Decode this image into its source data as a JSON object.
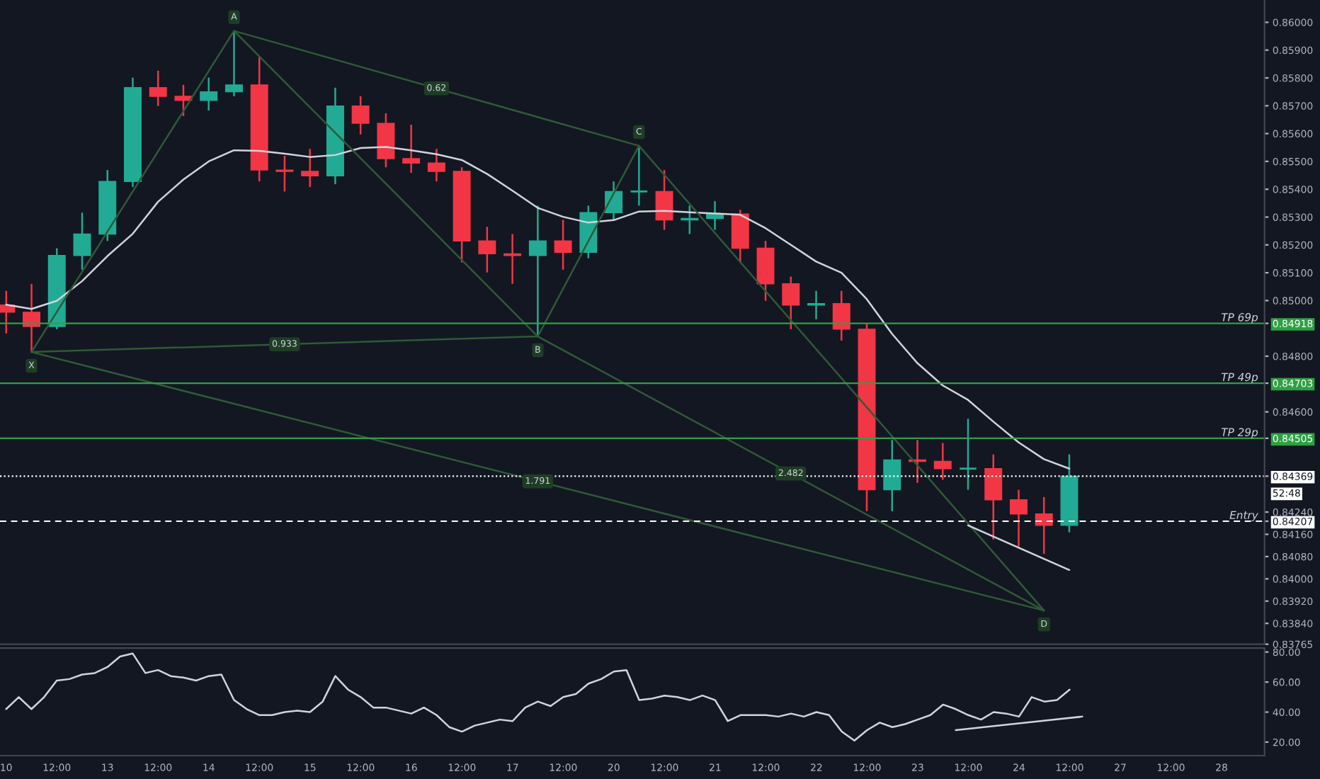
{
  "chart_data": [
    {
      "type": "candlestick",
      "ylim": [
        0.83765,
        0.8608
      ],
      "tick_labels": "y",
      "grid": false,
      "legend": false,
      "yticks": [
        {
          "value": 0.86,
          "label": "0.86000"
        },
        {
          "value": 0.859,
          "label": "0.85900"
        },
        {
          "value": 0.858,
          "label": "0.85800"
        },
        {
          "value": 0.857,
          "label": "0.85700"
        },
        {
          "value": 0.856,
          "label": "0.85600"
        },
        {
          "value": 0.855,
          "label": "0.85500"
        },
        {
          "value": 0.854,
          "label": "0.85400"
        },
        {
          "value": 0.853,
          "label": "0.85300"
        },
        {
          "value": 0.852,
          "label": "0.85200"
        },
        {
          "value": 0.851,
          "label": "0.85100"
        },
        {
          "value": 0.85,
          "label": "0.85000"
        },
        {
          "value": 0.84918,
          "label": "0.84918"
        },
        {
          "value": 0.848,
          "label": "0.84800"
        },
        {
          "value": 0.84703,
          "label": "0.84703"
        },
        {
          "value": 0.846,
          "label": "0.84600"
        },
        {
          "value": 0.84505,
          "label": "0.84505"
        },
        {
          "value": 0.84369,
          "label": "0.84369"
        },
        {
          "value": 0.8424,
          "label": "0.84240"
        },
        {
          "value": 0.84207,
          "label": "0.84207"
        },
        {
          "value": 0.8416,
          "label": "0.84160"
        },
        {
          "value": 0.8408,
          "label": "0.84080"
        },
        {
          "value": 0.84,
          "label": "0.84000"
        },
        {
          "value": 0.8392,
          "label": "0.83920"
        },
        {
          "value": 0.8384,
          "label": "0.83840"
        },
        {
          "value": 0.83765,
          "label": "0.83765"
        }
      ],
      "categories": [
        null,
        null,
        null,
        null,
        null,
        null,
        null,
        null,
        null,
        null,
        null,
        null,
        null,
        null,
        null,
        null,
        null,
        null,
        null,
        null,
        null,
        null,
        null,
        null,
        null,
        null,
        null,
        null,
        null,
        null,
        null,
        null,
        null,
        null,
        null,
        null,
        null,
        null,
        null,
        null,
        null,
        null,
        null,
        null,
        null,
        null,
        null,
        null,
        null
      ],
      "ohlc": [
        [
          0.84984,
          0.85035,
          0.84882,
          0.84958
        ],
        [
          0.84958,
          0.8506,
          0.84815,
          0.84907
        ],
        [
          0.84907,
          0.85188,
          0.84897,
          0.85162
        ],
        [
          0.85162,
          0.85316,
          0.85111,
          0.85239
        ],
        [
          0.85239,
          0.85469,
          0.85214,
          0.85428
        ],
        [
          0.85428,
          0.85801,
          0.85408,
          0.85765
        ],
        [
          0.85765,
          0.85826,
          0.85699,
          0.85734
        ],
        [
          0.85734,
          0.85775,
          0.85663,
          0.85719
        ],
        [
          0.85719,
          0.85801,
          0.85683,
          0.8575
        ],
        [
          0.8575,
          0.85969,
          0.85734,
          0.85775
        ],
        [
          0.85775,
          0.85877,
          0.85428,
          0.85469
        ],
        [
          0.85469,
          0.8552,
          0.85392,
          0.85464
        ],
        [
          0.85464,
          0.85545,
          0.85408,
          0.85448
        ],
        [
          0.85448,
          0.85765,
          0.85418,
          0.85699
        ],
        [
          0.85699,
          0.85734,
          0.85597,
          0.85637
        ],
        [
          0.85637,
          0.85673,
          0.85479,
          0.8551
        ],
        [
          0.8551,
          0.85632,
          0.85459,
          0.85494
        ],
        [
          0.85494,
          0.85545,
          0.85428,
          0.85464
        ],
        [
          0.85464,
          0.85479,
          0.85137,
          0.85214
        ],
        [
          0.85214,
          0.85265,
          0.85101,
          0.85168
        ],
        [
          0.85168,
          0.85239,
          0.8506,
          0.85162
        ],
        [
          0.85162,
          0.85341,
          0.84871,
          0.85214
        ],
        [
          0.85214,
          0.8529,
          0.85111,
          0.85173
        ],
        [
          0.85173,
          0.85341,
          0.85152,
          0.85316
        ],
        [
          0.85316,
          0.85428,
          0.8529,
          0.85392
        ],
        [
          0.85392,
          0.85556,
          0.85341,
          0.85392
        ],
        [
          0.85392,
          0.85469,
          0.85254,
          0.8529
        ],
        [
          0.8529,
          0.85341,
          0.85239,
          0.85295
        ],
        [
          0.85295,
          0.85357,
          0.85254,
          0.85311
        ],
        [
          0.85311,
          0.85326,
          0.85137,
          0.85188
        ],
        [
          0.85188,
          0.85214,
          0.84999,
          0.8506
        ],
        [
          0.8506,
          0.85086,
          0.84897,
          0.84984
        ],
        [
          0.84984,
          0.85035,
          0.84933,
          0.84989
        ],
        [
          0.84989,
          0.85035,
          0.84856,
          0.84897
        ],
        [
          0.84897,
          0.84917,
          0.84243,
          0.8432
        ],
        [
          0.8432,
          0.84499,
          0.84243,
          0.84427
        ],
        [
          0.84427,
          0.84499,
          0.84345,
          0.84422
        ],
        [
          0.84422,
          0.84488,
          0.84356,
          0.84396
        ],
        [
          0.84396,
          0.84575,
          0.8432,
          0.84396
        ],
        [
          0.84396,
          0.84447,
          0.84141,
          0.84284
        ],
        [
          0.84284,
          0.8432,
          0.84116,
          0.84233
        ],
        [
          0.84233,
          0.84294,
          0.8409,
          0.84192
        ],
        [
          0.84192,
          0.84447,
          0.84167,
          0.84369
        ],
        null,
        null,
        null,
        null,
        null,
        null
      ],
      "colors": [
        "#f23645",
        "#f23645",
        "#22ab94",
        "#22ab94",
        "#22ab94",
        "#22ab94",
        "#f23645",
        "#f23645",
        "#22ab94",
        "#22ab94",
        "#f23645",
        "#f23645",
        "#f23645",
        "#22ab94",
        "#f23645",
        "#f23645",
        "#f23645",
        "#f23645",
        "#f23645",
        "#f23645",
        "#f23645",
        "#22ab94",
        "#f23645",
        "#22ab94",
        "#22ab94",
        "#22ab94",
        "#f23645",
        "#22ab94",
        "#22ab94",
        "#f23645",
        "#f23645",
        "#f23645",
        "#22ab94",
        "#f23645",
        "#f23645",
        "#22ab94",
        "#f23645",
        "#f23645",
        "#22ab94",
        "#f23645",
        "#f23645",
        "#f23645",
        "#22ab94",
        null,
        null,
        null,
        null,
        null,
        null
      ],
      "series": [
        {
          "type": "line",
          "color": "#d1d4dc",
          "line_style": "solid",
          "values": [
            0.84985,
            0.8497,
            0.84999,
            0.8507,
            0.8516,
            0.8524,
            0.85355,
            0.85435,
            0.855,
            0.8554,
            0.85538,
            0.85528,
            0.85516,
            0.85523,
            0.85548,
            0.85552,
            0.8554,
            0.85526,
            0.85505,
            0.85455,
            0.85395,
            0.85333,
            0.85301,
            0.8528,
            0.85289,
            0.8532,
            0.85322,
            0.85317,
            0.85313,
            0.85308,
            0.8526,
            0.852,
            0.8514,
            0.851,
            0.85005,
            0.8488,
            0.84775,
            0.84695,
            0.84643,
            0.84565,
            0.8449,
            0.8443,
            0.84396,
            null,
            null,
            null,
            null,
            null,
            null
          ]
        },
        {
          "type": "line",
          "color": "#2f5a36",
          "line_style": "solid",
          "values": [
            null,
            0.84815,
            null,
            null,
            null,
            null,
            null,
            null,
            null,
            0.85969,
            null,
            null,
            null,
            null,
            null,
            null,
            null,
            null,
            null,
            null,
            null,
            0.84871,
            null,
            null,
            null,
            0.85556,
            null,
            null,
            null,
            null,
            null,
            null,
            null,
            null,
            null,
            null,
            null,
            null,
            null,
            null,
            null,
            0.83886,
            null,
            null,
            null,
            null,
            null,
            null,
            null
          ]
        },
        {
          "type": "line",
          "color": "#2f5a36",
          "line_style": "solid",
          "values": [
            null,
            0.84815,
            null,
            null,
            null,
            null,
            null,
            null,
            null,
            null,
            null,
            null,
            null,
            null,
            null,
            null,
            null,
            null,
            null,
            null,
            null,
            0.84871,
            null,
            null,
            null,
            null,
            null,
            null,
            null,
            null,
            null,
            null,
            null,
            null,
            null,
            null,
            null,
            null,
            null,
            null,
            null,
            null,
            null,
            null,
            null,
            null,
            null,
            null,
            null
          ]
        },
        {
          "type": "line",
          "color": "#2f5a36",
          "line_style": "solid",
          "values": [
            null,
            null,
            null,
            null,
            null,
            null,
            null,
            null,
            null,
            0.85969,
            null,
            null,
            null,
            null,
            null,
            null,
            null,
            null,
            null,
            null,
            null,
            null,
            null,
            null,
            null,
            0.85556,
            null,
            null,
            null,
            null,
            null,
            null,
            null,
            null,
            null,
            null,
            null,
            null,
            null,
            null,
            null,
            null,
            null,
            null,
            null,
            null,
            null,
            null,
            null
          ]
        },
        {
          "type": "line",
          "color": "#2f5a36",
          "line_style": "solid",
          "values": [
            null,
            null,
            null,
            null,
            null,
            null,
            null,
            null,
            null,
            null,
            null,
            null,
            null,
            null,
            null,
            null,
            null,
            null,
            null,
            null,
            null,
            0.84871,
            null,
            null,
            null,
            null,
            null,
            null,
            null,
            null,
            null,
            null,
            null,
            null,
            null,
            null,
            null,
            null,
            null,
            null,
            null,
            0.83886,
            null,
            null,
            null,
            null,
            null,
            null,
            null
          ]
        },
        {
          "type": "line",
          "color": "#2f5a36",
          "line_style": "solid",
          "values": [
            null,
            0.84815,
            null,
            null,
            null,
            null,
            null,
            null,
            null,
            null,
            null,
            null,
            null,
            null,
            null,
            null,
            null,
            null,
            null,
            null,
            null,
            null,
            null,
            null,
            null,
            null,
            null,
            null,
            null,
            null,
            null,
            null,
            null,
            null,
            null,
            null,
            null,
            null,
            null,
            null,
            null,
            0.83886,
            null,
            null,
            null,
            null,
            null,
            null,
            null
          ]
        },
        {
          "type": "line",
          "color": "#d1d4dc",
          "line_style": "solid",
          "values": [
            null,
            null,
            null,
            null,
            null,
            null,
            null,
            null,
            null,
            null,
            null,
            null,
            null,
            null,
            null,
            null,
            null,
            null,
            null,
            null,
            null,
            null,
            null,
            null,
            null,
            null,
            null,
            null,
            null,
            null,
            null,
            null,
            null,
            null,
            null,
            null,
            null,
            null,
            0.84192,
            null,
            null,
            null,
            0.84032,
            null,
            null,
            null,
            null,
            null,
            null
          ]
        }
      ],
      "ref_lines": [
        {
          "axis": "y",
          "value": 0.84918,
          "label": "TP 69p",
          "color": "#2ea043",
          "line_style": "solid"
        },
        {
          "axis": "y",
          "value": 0.84703,
          "label": "TP 49p",
          "color": "#2ea043",
          "line_style": "solid"
        },
        {
          "axis": "y",
          "value": 0.84505,
          "label": "TP 29p",
          "color": "#2ea043",
          "line_style": "solid"
        },
        {
          "axis": "y",
          "value": 0.84369,
          "label": null,
          "color": "#ffffff",
          "line_style": "dotted"
        },
        {
          "axis": "y",
          "value": 0.84207,
          "label": "Entry",
          "color": "#ffffff",
          "line_style": "dashed"
        }
      ],
      "annotations": [
        "X",
        "A",
        "B",
        "C",
        "D",
        "0.933",
        "0.62",
        "2.482",
        "1.791",
        "52:48"
      ]
    },
    {
      "type": "line",
      "ylim": [
        11,
        82.6
      ],
      "grid": false,
      "legend": false,
      "color": "#d1d4dc",
      "line_style": "solid",
      "yticks": [
        {
          "value": 20,
          "label": "20.00"
        },
        {
          "value": 40,
          "label": "40.00"
        },
        {
          "value": 60,
          "label": "60.00"
        },
        {
          "value": 80,
          "label": "80.00"
        }
      ],
      "categories": [
        "10",
        null,
        null,
        null,
        "12:00",
        null,
        null,
        null,
        "13",
        null,
        null,
        null,
        "12:00",
        null,
        null,
        null,
        "14",
        null,
        null,
        null,
        "12:00",
        null,
        null,
        null,
        "15",
        null,
        null,
        null,
        "12:00",
        null,
        null,
        null,
        "16",
        null,
        null,
        null,
        "12:00",
        null,
        null,
        null,
        "17",
        null,
        null,
        null,
        "12:00",
        null,
        null,
        null,
        "20",
        null,
        null,
        null,
        "12:00",
        null,
        null,
        null,
        "21",
        null,
        null,
        null,
        "12:00",
        null,
        null,
        null,
        "22",
        null,
        null,
        null,
        "12:00",
        null,
        null,
        null,
        "23",
        null,
        null,
        null,
        "12:00",
        null,
        null,
        null,
        "24",
        null,
        null,
        null,
        "12:00",
        null,
        null,
        null,
        "27",
        null,
        null,
        null,
        "12:00",
        null,
        null,
        null,
        "28"
      ],
      "values": [
        42,
        50,
        42,
        50,
        61,
        62,
        65,
        66,
        70,
        77,
        79,
        66,
        68,
        64,
        63,
        61,
        64,
        65,
        48,
        42,
        38,
        38,
        40,
        41,
        40,
        47,
        64,
        55,
        50,
        43,
        43,
        41,
        39,
        43,
        38,
        30,
        27,
        31,
        33,
        35,
        34,
        43,
        47,
        44,
        50,
        52,
        59,
        62,
        67,
        68,
        48,
        49,
        51,
        50,
        48,
        51,
        48,
        34,
        38,
        38,
        38,
        37,
        39,
        37,
        40,
        38,
        27,
        21,
        28,
        33,
        30,
        32,
        35,
        38,
        45,
        42,
        38,
        35,
        40,
        39,
        37,
        50,
        47,
        48,
        55,
        null,
        null,
        null,
        null,
        null,
        null,
        null,
        null,
        null,
        null,
        null,
        null
      ],
      "series": [
        {
          "type": "line",
          "color": "#d1d4dc",
          "line_style": "solid",
          "values": [
            null,
            null,
            null,
            null,
            null,
            null,
            null,
            null,
            null,
            null,
            null,
            null,
            null,
            null,
            null,
            null,
            null,
            null,
            null,
            null,
            null,
            null,
            null,
            null,
            null,
            null,
            null,
            null,
            null,
            null,
            null,
            null,
            null,
            null,
            null,
            null,
            null,
            null,
            null,
            null,
            null,
            null,
            null,
            null,
            null,
            null,
            null,
            null,
            null,
            null,
            null,
            null,
            null,
            null,
            null,
            null,
            null,
            null,
            null,
            null,
            null,
            null,
            null,
            null,
            null,
            null,
            null,
            null,
            null,
            null,
            null,
            null,
            null,
            null,
            null,
            28,
            null,
            null,
            null,
            null,
            null,
            null,
            null,
            null,
            null,
            37,
            null,
            null,
            null,
            null,
            null,
            null,
            null,
            null,
            null,
            null,
            null
          ]
        }
      ]
    }
  ]
}
